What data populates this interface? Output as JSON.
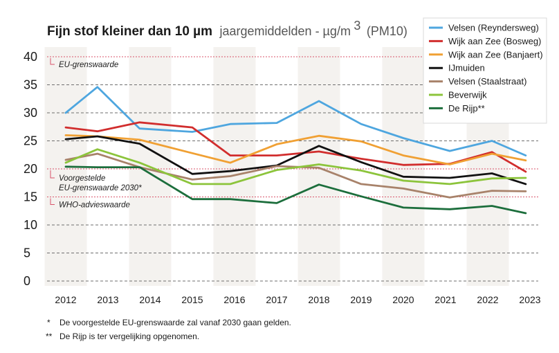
{
  "chart_data": {
    "type": "line",
    "title_bold": "Fijn stof kleiner dan 10 µm",
    "title_light": "jaargemiddelden - µg/m",
    "title_sup": "3",
    "title_suffix": "(PM10)",
    "categories": [
      "2012",
      "2013",
      "2014",
      "2015",
      "2016",
      "2017",
      "2018",
      "2019",
      "2020",
      "2021",
      "2022",
      "2023"
    ],
    "x": [
      2012,
      2012.75,
      2013.75,
      2015,
      2015.9,
      2017,
      2018,
      2019,
      2020,
      2021.1,
      2022.1,
      2022.9
    ],
    "ylim": [
      0,
      40
    ],
    "yticks": [
      "0",
      "5",
      "10",
      "15",
      "20",
      "25",
      "30",
      "35",
      "40"
    ],
    "series": [
      {
        "name": "Velsen (Reyndersweg)",
        "color": "#4ea6df",
        "values": [
          30,
          34.6,
          27.2,
          26.6,
          28,
          28.2,
          32.1,
          28,
          25.5,
          23.2,
          25,
          22.4
        ]
      },
      {
        "name": "Wijk aan Zee (Bosweg)",
        "color": "#d12d2d",
        "values": [
          27.4,
          26.7,
          28.3,
          27.4,
          22.4,
          22.4,
          23.1,
          21.8,
          20.7,
          20.9,
          23,
          19.5
        ]
      },
      {
        "name": "Wijk aan Zee (Banjaert)",
        "color": "#f0a033",
        "values": [
          26,
          25.8,
          25.2,
          22.8,
          21.1,
          24.4,
          25.9,
          24.9,
          22.4,
          20.8,
          22.7,
          21.5
        ]
      },
      {
        "name": "IJmuiden",
        "color": "#111111",
        "values": [
          25.3,
          25.8,
          24.5,
          19.1,
          19.6,
          20.6,
          24.1,
          21.2,
          18.6,
          18.4,
          19.2,
          17.3
        ]
      },
      {
        "name": "Velsen (Staalstraat)",
        "color": "#a8826a",
        "values": [
          21.6,
          22.7,
          20.3,
          18.1,
          18.7,
          20.5,
          20.2,
          17.3,
          16.5,
          14.9,
          16.1,
          16
        ]
      },
      {
        "name": "Beverwijk",
        "color": "#8cc43b",
        "values": [
          21.1,
          23.5,
          21.1,
          17.3,
          17.3,
          19.8,
          20.8,
          19.7,
          17.9,
          17.3,
          18.3,
          18.4
        ]
      },
      {
        "name": "De Rijp**",
        "color": "#1c6e3c",
        "values": [
          20.4,
          20.3,
          20.3,
          14.6,
          14.6,
          13.9,
          17.2,
          15.1,
          13.1,
          12.8,
          13.4,
          12.1
        ]
      }
    ],
    "reference_lines": [
      {
        "value": 40,
        "label_lines": [
          "EU-grenswaarde"
        ]
      },
      {
        "value": 20,
        "label_lines": [
          "Voorgestelde",
          "EU-grenswaarde 2030*"
        ]
      },
      {
        "value": 15,
        "label_lines": [
          "WHO-advieswaarde"
        ]
      }
    ],
    "legend_position": "top-right",
    "grid": true
  },
  "footnotes": [
    {
      "mark": "*",
      "text": "De voorgestelde EU-grenswaarde zal vanaf 2030 gaan gelden."
    },
    {
      "mark": "**",
      "text": "De Rijp is ter vergelijking opgenomen."
    }
  ],
  "colors": {
    "reference_line": "#d9536a",
    "grid": "#6e6e6e",
    "band": "#f4f2ef"
  }
}
